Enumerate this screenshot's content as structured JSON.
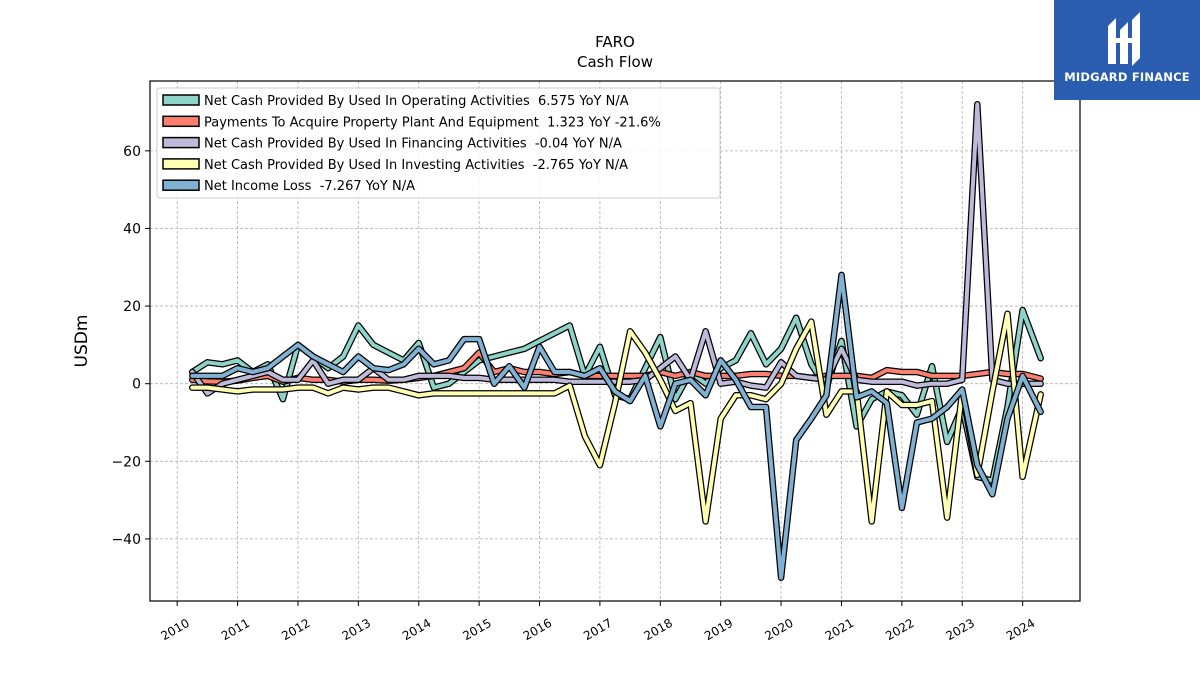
{
  "brand": {
    "name": "MIDGARD FINANCE",
    "bg": "#2a5db0"
  },
  "chart_data": {
    "type": "line",
    "title": "FARO",
    "subtitle": "Cash Flow",
    "xlabel": "",
    "ylabel": "USDm",
    "xlim": [
      2009.55,
      2024.95
    ],
    "ylim": [
      -56,
      78
    ],
    "yticks": [
      -40,
      -20,
      0,
      20,
      40,
      60
    ],
    "xticks": [
      2010,
      2011,
      2012,
      2013,
      2014,
      2015,
      2016,
      2017,
      2018,
      2019,
      2020,
      2021,
      2022,
      2023,
      2024
    ],
    "grid": true,
    "legend_position": "upper-left",
    "series": [
      {
        "name": "Net Cash Provided By Used In Operating Activities  6.575 YoY N/A",
        "color": "#8dd3c7",
        "points": [
          [
            2010.25,
            3
          ],
          [
            2010.5,
            5.5
          ],
          [
            2010.75,
            5
          ],
          [
            2011.0,
            6
          ],
          [
            2011.25,
            3
          ],
          [
            2011.5,
            5
          ],
          [
            2011.75,
            -4
          ],
          [
            2012.0,
            10
          ],
          [
            2012.25,
            7
          ],
          [
            2012.5,
            4
          ],
          [
            2012.75,
            7
          ],
          [
            2013.0,
            15
          ],
          [
            2013.25,
            10
          ],
          [
            2013.5,
            8
          ],
          [
            2013.75,
            6
          ],
          [
            2014.0,
            10.5
          ],
          [
            2014.25,
            -1
          ],
          [
            2014.5,
            0
          ],
          [
            2014.75,
            3
          ],
          [
            2015.0,
            6
          ],
          [
            2015.25,
            7
          ],
          [
            2015.5,
            8
          ],
          [
            2015.75,
            9
          ],
          [
            2016.0,
            11
          ],
          [
            2016.25,
            13
          ],
          [
            2016.5,
            15
          ],
          [
            2016.75,
            2
          ],
          [
            2017.0,
            9.5
          ],
          [
            2017.25,
            -3
          ],
          [
            2017.5,
            -4
          ],
          [
            2017.75,
            4
          ],
          [
            2018.0,
            12
          ],
          [
            2018.25,
            -4
          ],
          [
            2018.5,
            3
          ],
          [
            2018.75,
            0
          ],
          [
            2019.0,
            4
          ],
          [
            2019.25,
            6
          ],
          [
            2019.5,
            13
          ],
          [
            2019.75,
            5
          ],
          [
            2020.0,
            9
          ],
          [
            2020.25,
            17
          ],
          [
            2020.5,
            5
          ],
          [
            2020.75,
            -1
          ],
          [
            2021.0,
            11
          ],
          [
            2021.25,
            -11
          ],
          [
            2021.5,
            -4
          ],
          [
            2021.75,
            -2
          ],
          [
            2022.0,
            -3
          ],
          [
            2022.25,
            -8
          ],
          [
            2022.5,
            4.5
          ],
          [
            2022.75,
            -15
          ],
          [
            2023.0,
            -6
          ],
          [
            2023.25,
            -24
          ],
          [
            2023.5,
            -25
          ],
          [
            2023.75,
            -6
          ],
          [
            2024.0,
            19
          ],
          [
            2024.3,
            6.575
          ]
        ]
      },
      {
        "name": "Payments To Acquire Property Plant And Equipment  1.323 YoY -21.6%",
        "color": "#fb8072",
        "points": [
          [
            2010.25,
            1
          ],
          [
            2010.5,
            0.6
          ],
          [
            2010.75,
            0.5
          ],
          [
            2011.0,
            0.8
          ],
          [
            2011.25,
            1.5
          ],
          [
            2011.5,
            2
          ],
          [
            2011.75,
            0.5
          ],
          [
            2012.0,
            1.5
          ],
          [
            2012.25,
            1
          ],
          [
            2012.5,
            1
          ],
          [
            2012.75,
            0.5
          ],
          [
            2013.0,
            1
          ],
          [
            2013.25,
            1
          ],
          [
            2013.5,
            0.8
          ],
          [
            2013.75,
            1
          ],
          [
            2014.0,
            1.5
          ],
          [
            2014.25,
            2
          ],
          [
            2014.5,
            3
          ],
          [
            2014.75,
            4
          ],
          [
            2015.0,
            8
          ],
          [
            2015.25,
            3
          ],
          [
            2015.5,
            4
          ],
          [
            2015.75,
            3
          ],
          [
            2016.0,
            3
          ],
          [
            2016.25,
            2.5
          ],
          [
            2016.5,
            3
          ],
          [
            2016.75,
            2
          ],
          [
            2017.0,
            2
          ],
          [
            2017.25,
            2
          ],
          [
            2017.5,
            2
          ],
          [
            2017.75,
            2
          ],
          [
            2018.0,
            3
          ],
          [
            2018.25,
            2
          ],
          [
            2018.5,
            3
          ],
          [
            2018.75,
            2
          ],
          [
            2019.0,
            2
          ],
          [
            2019.25,
            2
          ],
          [
            2019.5,
            2.5
          ],
          [
            2019.75,
            2.5
          ],
          [
            2020.0,
            2
          ],
          [
            2020.25,
            2
          ],
          [
            2020.5,
            1.5
          ],
          [
            2020.75,
            2
          ],
          [
            2021.0,
            2
          ],
          [
            2021.25,
            2
          ],
          [
            2021.5,
            1.5
          ],
          [
            2021.75,
            3.5
          ],
          [
            2022.0,
            3
          ],
          [
            2022.25,
            3
          ],
          [
            2022.5,
            2
          ],
          [
            2022.75,
            2
          ],
          [
            2023.0,
            2
          ],
          [
            2023.25,
            2.5
          ],
          [
            2023.5,
            3
          ],
          [
            2023.75,
            2.5
          ],
          [
            2024.0,
            2.5
          ],
          [
            2024.3,
            1.323
          ]
        ]
      },
      {
        "name": "Net Cash Provided By Used In Financing Activities  -0.04 YoY N/A",
        "color": "#bebada",
        "points": [
          [
            2010.25,
            3
          ],
          [
            2010.5,
            -2.5
          ],
          [
            2010.75,
            0
          ],
          [
            2011.0,
            1
          ],
          [
            2011.25,
            2
          ],
          [
            2011.5,
            3
          ],
          [
            2011.75,
            1
          ],
          [
            2012.0,
            1
          ],
          [
            2012.25,
            6
          ],
          [
            2012.5,
            0
          ],
          [
            2012.75,
            1
          ],
          [
            2013.0,
            1
          ],
          [
            2013.25,
            4
          ],
          [
            2013.5,
            1
          ],
          [
            2013.75,
            1
          ],
          [
            2014.0,
            2
          ],
          [
            2014.25,
            2
          ],
          [
            2014.5,
            2
          ],
          [
            2014.75,
            1.5
          ],
          [
            2015.0,
            1.5
          ],
          [
            2015.25,
            1
          ],
          [
            2015.5,
            1
          ],
          [
            2015.75,
            1
          ],
          [
            2016.0,
            1
          ],
          [
            2016.25,
            1
          ],
          [
            2016.5,
            0.5
          ],
          [
            2016.75,
            0.5
          ],
          [
            2017.0,
            0.5
          ],
          [
            2017.25,
            0.5
          ],
          [
            2017.5,
            0.5
          ],
          [
            2017.75,
            1
          ],
          [
            2018.0,
            4
          ],
          [
            2018.25,
            7
          ],
          [
            2018.5,
            1
          ],
          [
            2018.75,
            13.5
          ],
          [
            2019.0,
            0
          ],
          [
            2019.25,
            0.5
          ],
          [
            2019.5,
            -0.5
          ],
          [
            2019.75,
            -1
          ],
          [
            2020.0,
            5.5
          ],
          [
            2020.25,
            2
          ],
          [
            2020.5,
            1.5
          ],
          [
            2020.75,
            1
          ],
          [
            2021.0,
            9
          ],
          [
            2021.25,
            1
          ],
          [
            2021.5,
            0.5
          ],
          [
            2021.75,
            0.5
          ],
          [
            2022.0,
            0.5
          ],
          [
            2022.25,
            -0.5
          ],
          [
            2022.5,
            0
          ],
          [
            2022.75,
            0
          ],
          [
            2023.0,
            1
          ],
          [
            2023.25,
            72
          ],
          [
            2023.5,
            1
          ],
          [
            2023.75,
            0
          ],
          [
            2024.0,
            0
          ],
          [
            2024.3,
            -0.04
          ]
        ]
      },
      {
        "name": "Net Cash Provided By Used In Investing Activities  -2.765 YoY N/A",
        "color": "#ffffb3",
        "points": [
          [
            2010.25,
            -1
          ],
          [
            2010.5,
            -1
          ],
          [
            2010.75,
            -1.5
          ],
          [
            2011.0,
            -2
          ],
          [
            2011.25,
            -1.5
          ],
          [
            2011.5,
            -1.5
          ],
          [
            2011.75,
            -1.5
          ],
          [
            2012.0,
            -1
          ],
          [
            2012.25,
            -1
          ],
          [
            2012.5,
            -2.5
          ],
          [
            2012.75,
            -1
          ],
          [
            2013.0,
            -1.5
          ],
          [
            2013.25,
            -1
          ],
          [
            2013.5,
            -1
          ],
          [
            2013.75,
            -2
          ],
          [
            2014.0,
            -3
          ],
          [
            2014.25,
            -2.5
          ],
          [
            2014.5,
            -2.5
          ],
          [
            2014.75,
            -2.5
          ],
          [
            2015.0,
            -2.5
          ],
          [
            2015.25,
            -2.5
          ],
          [
            2015.5,
            -2.5
          ],
          [
            2015.75,
            -2.5
          ],
          [
            2016.0,
            -2.5
          ],
          [
            2016.25,
            -2.5
          ],
          [
            2016.5,
            -0.5
          ],
          [
            2016.75,
            -13.5
          ],
          [
            2017.0,
            -21
          ],
          [
            2017.25,
            -5
          ],
          [
            2017.5,
            13.5
          ],
          [
            2017.75,
            8
          ],
          [
            2018.0,
            1
          ],
          [
            2018.25,
            -7
          ],
          [
            2018.5,
            -5
          ],
          [
            2018.75,
            -35.5
          ],
          [
            2019.0,
            -9
          ],
          [
            2019.25,
            -3
          ],
          [
            2019.5,
            -3
          ],
          [
            2019.75,
            -4
          ],
          [
            2020.0,
            0
          ],
          [
            2020.25,
            9
          ],
          [
            2020.5,
            16
          ],
          [
            2020.75,
            -8
          ],
          [
            2021.0,
            -2
          ],
          [
            2021.25,
            -2
          ],
          [
            2021.5,
            -35.5
          ],
          [
            2021.75,
            -2
          ],
          [
            2022.0,
            -5.5
          ],
          [
            2022.25,
            -5.5
          ],
          [
            2022.5,
            -4.5
          ],
          [
            2022.75,
            -34.5
          ],
          [
            2023.0,
            -2
          ],
          [
            2023.25,
            -23.5
          ],
          [
            2023.5,
            -2
          ],
          [
            2023.75,
            18
          ],
          [
            2024.0,
            -24
          ],
          [
            2024.3,
            -2.765
          ]
        ]
      },
      {
        "name": "Net Income Loss  -7.267 YoY N/A",
        "color": "#80b1d3",
        "points": [
          [
            2010.25,
            2
          ],
          [
            2010.5,
            2
          ],
          [
            2010.75,
            2
          ],
          [
            2011.0,
            4
          ],
          [
            2011.25,
            3
          ],
          [
            2011.5,
            4
          ],
          [
            2011.75,
            7
          ],
          [
            2012.0,
            10
          ],
          [
            2012.25,
            7
          ],
          [
            2012.5,
            5
          ],
          [
            2012.75,
            3
          ],
          [
            2013.0,
            7
          ],
          [
            2013.25,
            4
          ],
          [
            2013.5,
            3.5
          ],
          [
            2013.75,
            5
          ],
          [
            2014.0,
            9
          ],
          [
            2014.25,
            5
          ],
          [
            2014.5,
            6
          ],
          [
            2014.75,
            11.5
          ],
          [
            2015.0,
            11.5
          ],
          [
            2015.25,
            0
          ],
          [
            2015.5,
            4.5
          ],
          [
            2015.75,
            -1
          ],
          [
            2016.0,
            9.5
          ],
          [
            2016.25,
            3
          ],
          [
            2016.5,
            3
          ],
          [
            2016.75,
            2
          ],
          [
            2017.0,
            4
          ],
          [
            2017.25,
            -2
          ],
          [
            2017.5,
            -4.5
          ],
          [
            2017.75,
            2
          ],
          [
            2018.0,
            -11
          ],
          [
            2018.25,
            0
          ],
          [
            2018.5,
            1
          ],
          [
            2018.75,
            -3
          ],
          [
            2019.0,
            6
          ],
          [
            2019.25,
            1
          ],
          [
            2019.5,
            -6
          ],
          [
            2019.75,
            -6
          ],
          [
            2020.0,
            -50
          ],
          [
            2020.25,
            -14.5
          ],
          [
            2020.5,
            -9
          ],
          [
            2020.75,
            -3
          ],
          [
            2021.0,
            28
          ],
          [
            2021.25,
            -3.5
          ],
          [
            2021.5,
            -2
          ],
          [
            2021.75,
            -5
          ],
          [
            2022.0,
            -32
          ],
          [
            2022.25,
            -10
          ],
          [
            2022.5,
            -9
          ],
          [
            2022.75,
            -6
          ],
          [
            2023.0,
            -1.5
          ],
          [
            2023.25,
            -21
          ],
          [
            2023.5,
            -28.5
          ],
          [
            2023.75,
            -9
          ],
          [
            2024.0,
            2
          ],
          [
            2024.3,
            -7.267
          ]
        ]
      }
    ]
  }
}
